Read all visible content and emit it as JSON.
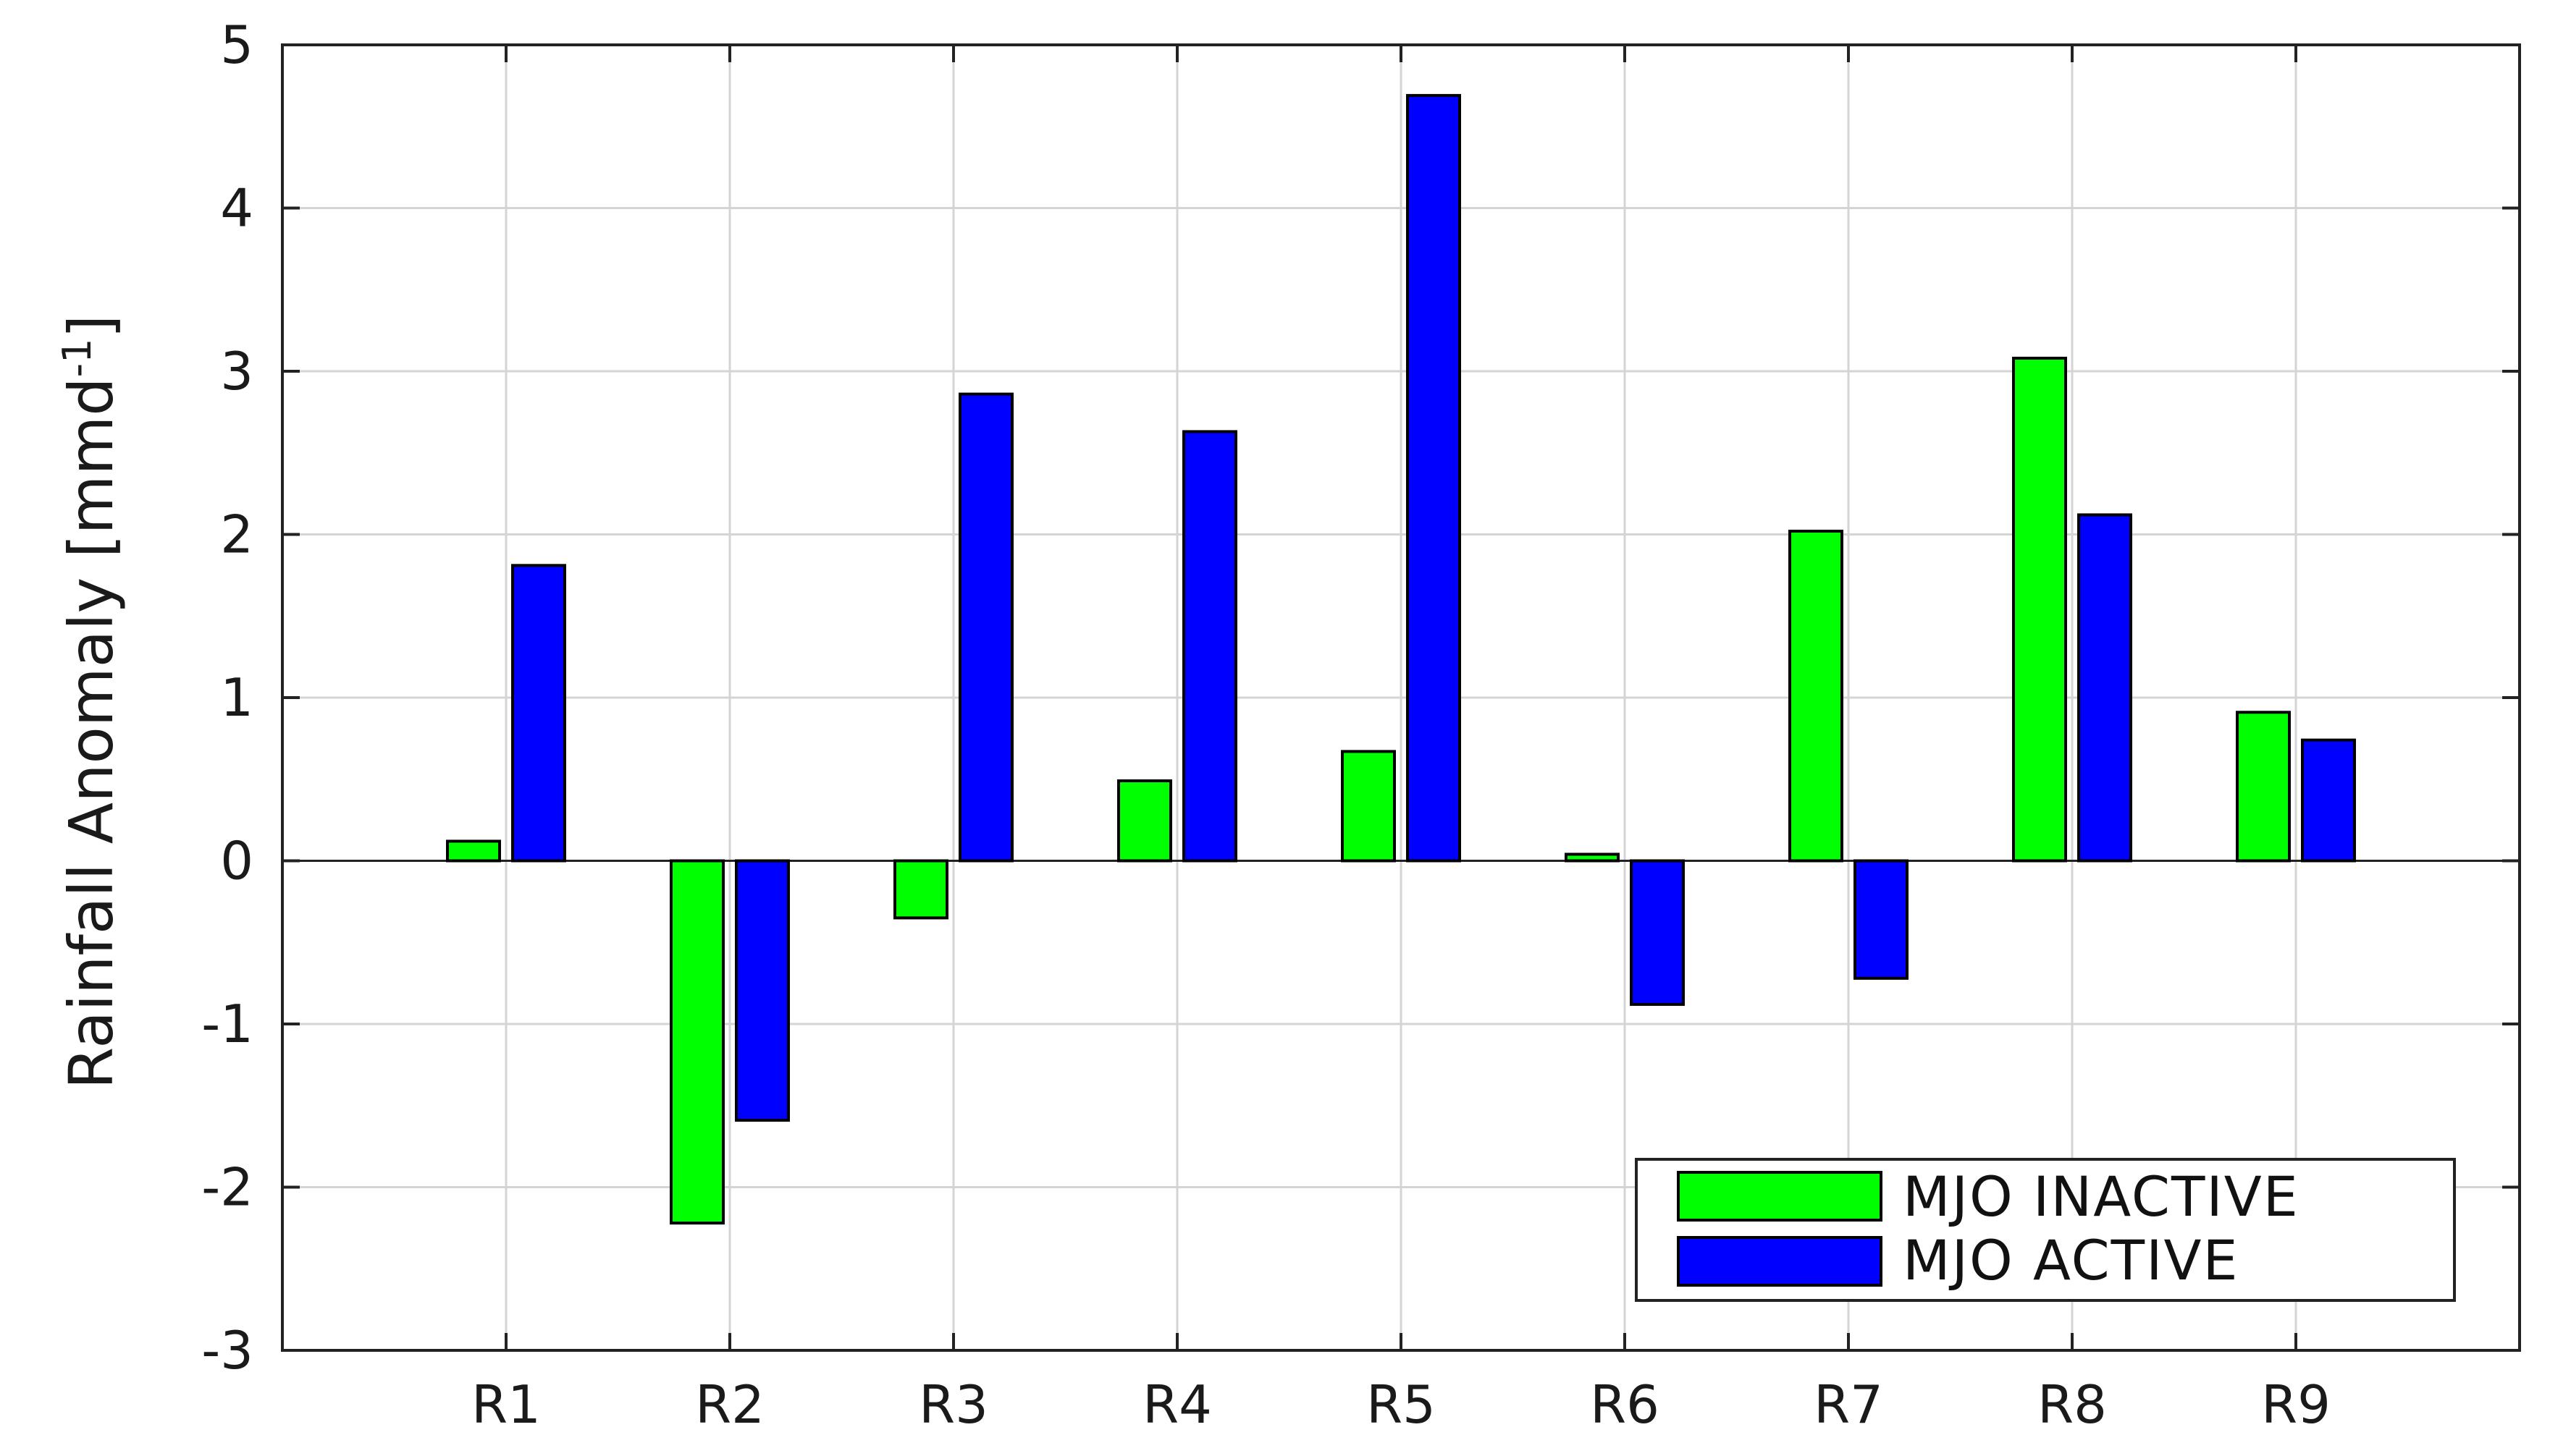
{
  "chart_data": {
    "type": "bar",
    "title": "",
    "xlabel": "",
    "ylabel": "Rainfall Anomaly [mmd",
    "ylabel_superscript": "-1",
    "ylabel_close": "]",
    "categories": [
      "R1",
      "R2",
      "R3",
      "R4",
      "R5",
      "R6",
      "R7",
      "R8",
      "R9"
    ],
    "series": [
      {
        "name": "MJO INACTIVE",
        "color": "#00ff00",
        "values": [
          0.12,
          -2.22,
          -0.35,
          0.49,
          0.67,
          0.04,
          2.02,
          3.08,
          0.91
        ]
      },
      {
        "name": "MJO ACTIVE",
        "color": "#0000ff",
        "values": [
          1.81,
          -1.59,
          2.86,
          2.63,
          4.69,
          -0.88,
          -0.72,
          2.12,
          0.74
        ]
      }
    ],
    "ylim": [
      -3,
      5
    ],
    "yticks": [
      -3,
      -2,
      -1,
      0,
      1,
      2,
      3,
      4,
      5
    ],
    "grid": true,
    "legend_position": "bottom-right"
  }
}
